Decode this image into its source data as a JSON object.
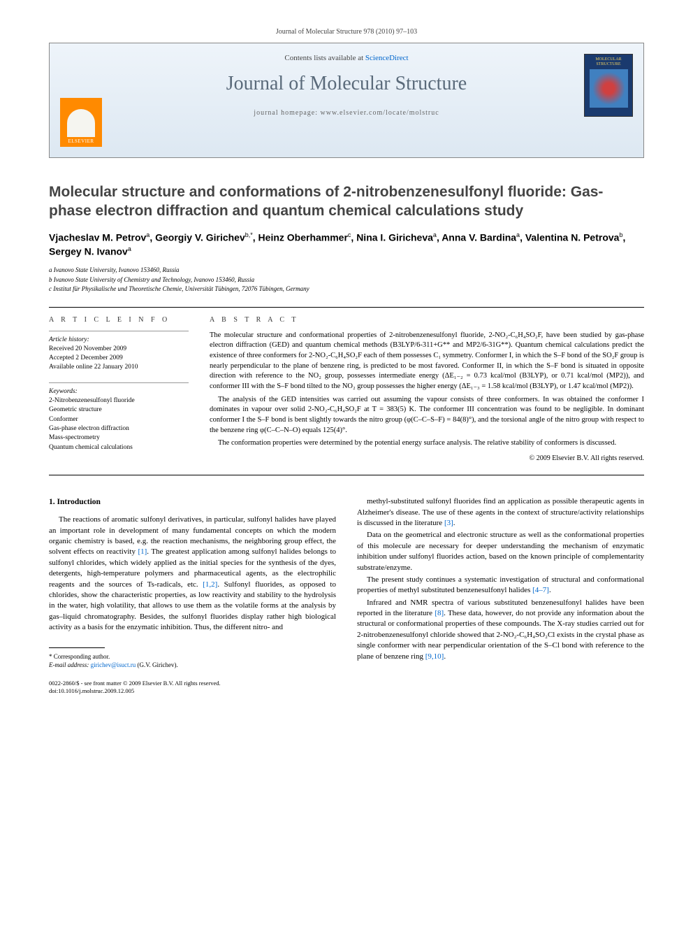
{
  "header_citation": "Journal of Molecular Structure 978 (2010) 97–103",
  "banner": {
    "sd_prefix": "Contents lists available at ",
    "sd_link": "ScienceDirect",
    "journal_name": "Journal of Molecular Structure",
    "homepage_prefix": "journal homepage: ",
    "homepage_url": "www.elsevier.com/locate/molstruc",
    "publisher": "ELSEVIER",
    "cover_text": "MOLECULAR STRUCTURE"
  },
  "title": "Molecular structure and conformations of 2-nitrobenzenesulfonyl fluoride: Gas-phase electron diffraction and quantum chemical calculations study",
  "authors_html": "Vjacheslav M. Petrov<sup>a</sup>, Georgiy V. Girichev<sup>b,*</sup>, Heinz Oberhammer<sup>c</sup>, Nina I. Giricheva<sup>a</sup>, Anna V. Bardina<sup>a</sup>, Valentina N. Petrova<sup>b</sup>, Sergey N. Ivanov<sup>a</sup>",
  "affiliations": [
    "a Ivanovo State University, Ivanovo 153460, Russia",
    "b Ivanovo State University of Chemistry and Technology, Ivanovo 153460, Russia",
    "c Institut für Physikalische und Theoretische Chemie, Universität Tübingen, 72076 Tübingen, Germany"
  ],
  "info": {
    "label_info": "A R T I C L E   I N F O",
    "history_label": "Article history:",
    "received": "Received 20 November 2009",
    "accepted": "Accepted 2 December 2009",
    "online": "Available online 22 January 2010",
    "keywords_label": "Keywords:",
    "keywords": [
      "2-Nitrobenzenesulfonyl fluoride",
      "Geometric structure",
      "Conformer",
      "Gas-phase electron diffraction",
      "Mass-spectrometry",
      "Quantum chemical calculations"
    ]
  },
  "abstract": {
    "label": "A B S T R A C T",
    "p1": "The molecular structure and conformational properties of 2-nitrobenzenesulfonyl fluoride, 2-NO₂-C₆H₄SO₂F, have been studied by gas-phase electron diffraction (GED) and quantum chemical methods (B3LYP/6-311+G** and MP2/6-31G**). Quantum chemical calculations predict the existence of three conformers for 2-NO₂-C₆H₄SO₂F each of them possesses C₁ symmetry. Conformer I, in which the S–F bond of the SO₂F group is nearly perpendicular to the plane of benzene ring, is predicted to be most favored. Conformer II, in which the S–F bond is situated in opposite direction with reference to the NO₂ group, possesses intermediate energy (ΔE₁₋₂ = 0.73 kcal/mol (B3LYP), or 0.71 kcal/mol (MP2)), and conformer III with the S–F bond tilted to the NO₂ group possesses the higher energy (ΔE₁₋₃ = 1.58 kcal/mol (B3LYP), or 1.47 kcal/mol (MP2)).",
    "p2": "The analysis of the GED intensities was carried out assuming the vapour consists of three conformers. In was obtained the conformer I dominates in vapour over solid 2-NO₂-C₆H₄SO₂F at T = 383(5) K. The conformer III concentration was found to be negligible. In dominant conformer I the S–F bond is bent slightly towards the nitro group (φ(C–C–S–F) = 84(8)°), and the torsional angle of the nitro group with respect to the benzene ring φ(C–C–N–O) equals 125(4)°.",
    "p3": "The conformation properties were determined by the potential energy surface analysis. The relative stability of conformers is discussed.",
    "copyright": "© 2009 Elsevier B.V. All rights reserved."
  },
  "body": {
    "heading": "1. Introduction",
    "left": [
      "The reactions of aromatic sulfonyl derivatives, in particular, sulfonyl halides have played an important role in development of many fundamental concepts on which the modern organic chemistry is based, e.g. the reaction mechanisms, the neighboring group effect, the solvent effects on reactivity [1]. The greatest application among sulfonyl halides belongs to sulfonyl chlorides, which widely applied as the initial species for the synthesis of the dyes, detergents, high-temperature polymers and pharmaceutical agents, as the electrophilic reagents and the sources of Ts-radicals, etc. [1,2]. Sulfonyl fluorides, as opposed to chlorides, show the characteristic properties, as low reactivity and stability to the hydrolysis in the water, high volatility, that allows to use them as the volatile forms at the analysis by gas–liquid chromatography. Besides, the sulfonyl fluorides display rather high biological activity as a basis for the enzymatic inhibition. Thus, the different nitro- and"
    ],
    "right": [
      "methyl-substituted sulfonyl fluorides find an application as possible therapeutic agents in Alzheimer's disease. The use of these agents in the context of structure/activity relationships is discussed in the literature [3].",
      "Data on the geometrical and electronic structure as well as the conformational properties of this molecule are necessary for deeper understanding the mechanism of enzymatic inhibition under sulfonyl fluorides action, based on the known principle of complementarity substrate/enzyme.",
      "The present study continues a systematic investigation of structural and conformational properties of methyl substituted benzenesulfonyl halides [4–7].",
      "Infrared and NMR spectra of various substituted benzenesulfonyl halides have been reported in the literature [8]. These data, however, do not provide any information about the structural or conformational properties of these compounds. The X-ray studies carried out for 2-nitrobenzenesulfonyl chloride showed that 2-NO₂-C₆H₄SO₂Cl exists in the crystal phase as single conformer with near perpendicular orientation of the S–Cl bond with reference to the plane of benzene ring [9,10]."
    ]
  },
  "footnote": {
    "corr": "* Corresponding author.",
    "email_label": "E-mail address:",
    "email": "girichev@isuct.ru",
    "email_name": "(G.V. Girichev)."
  },
  "doi": {
    "line1": "0022-2860/$ - see front matter © 2009 Elsevier B.V. All rights reserved.",
    "line2": "doi:10.1016/j.molstruc.2009.12.005"
  }
}
